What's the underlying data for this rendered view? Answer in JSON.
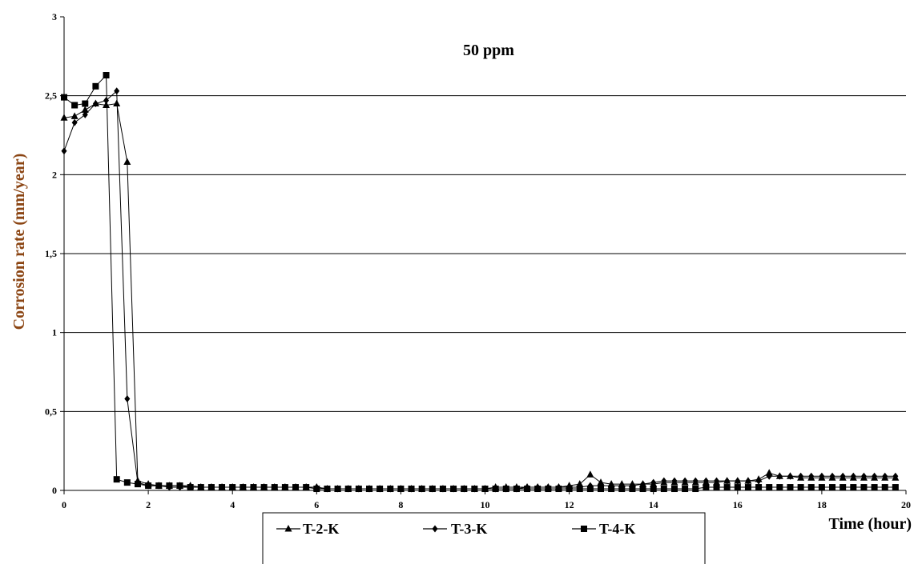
{
  "chart_data": {
    "type": "line",
    "title": "50 ppm",
    "xlabel": "Time (hour)",
    "ylabel": "Corrosion rate (mm/year)",
    "xlim": [
      0,
      20
    ],
    "ylim": [
      0,
      3
    ],
    "x_ticks": [
      0,
      2,
      4,
      6,
      8,
      10,
      12,
      14,
      16,
      18,
      20
    ],
    "x_tick_labels": [
      "0",
      "2",
      "4",
      "6",
      "8",
      "10",
      "12",
      "14",
      "16",
      "18",
      "20"
    ],
    "y_ticks": [
      0,
      0.5,
      1,
      1.5,
      2,
      2.5,
      3
    ],
    "y_tick_labels": [
      "0",
      "0,5",
      "1",
      "1,5",
      "2",
      "2,5",
      "3"
    ],
    "grid": "horizontal",
    "legend_position": "bottom",
    "series": [
      {
        "name": "T-2-K",
        "marker": "triangle",
        "x": [
          0,
          0.25,
          0.5,
          0.75,
          1.0,
          1.25,
          1.5,
          1.75,
          2.0,
          2.25,
          2.5,
          2.75,
          3.0,
          3.25,
          3.5,
          3.75,
          4.0,
          4.25,
          4.5,
          4.75,
          5.0,
          5.25,
          5.5,
          5.75,
          6.0,
          6.25,
          6.5,
          6.75,
          7.0,
          7.25,
          7.5,
          7.75,
          8.0,
          8.25,
          8.5,
          8.75,
          9.0,
          9.25,
          9.5,
          9.75,
          10.0,
          10.25,
          10.5,
          10.75,
          11.0,
          11.25,
          11.5,
          11.75,
          12.0,
          12.25,
          12.5,
          12.75,
          13.0,
          13.25,
          13.5,
          13.75,
          14.0,
          14.25,
          14.5,
          14.75,
          15.0,
          15.25,
          15.5,
          15.75,
          16.0,
          16.25,
          16.5,
          16.75,
          17.0,
          17.25,
          17.5,
          17.75,
          18.0,
          18.25,
          18.5,
          18.75,
          19.0,
          19.25,
          19.5,
          19.75
        ],
        "y": [
          2.36,
          2.37,
          2.41,
          2.45,
          2.44,
          2.45,
          2.08,
          0.06,
          0.04,
          0.03,
          0.03,
          0.03,
          0.03,
          0.02,
          0.02,
          0.02,
          0.02,
          0.02,
          0.02,
          0.02,
          0.02,
          0.02,
          0.02,
          0.02,
          0.02,
          0.01,
          0.01,
          0.01,
          0.01,
          0.01,
          0.01,
          0.01,
          0.01,
          0.01,
          0.01,
          0.01,
          0.01,
          0.01,
          0.01,
          0.01,
          0.01,
          0.02,
          0.02,
          0.02,
          0.02,
          0.02,
          0.02,
          0.02,
          0.03,
          0.04,
          0.1,
          0.05,
          0.04,
          0.04,
          0.04,
          0.04,
          0.04,
          0.05,
          0.05,
          0.05,
          0.05,
          0.05,
          0.05,
          0.06,
          0.06,
          0.06,
          0.07,
          0.11,
          0.09,
          0.09,
          0.08,
          0.08,
          0.08,
          0.08,
          0.08,
          0.08,
          0.08,
          0.08,
          0.08,
          0.08
        ]
      },
      {
        "name": "T-3-K",
        "marker": "diamond",
        "x": [
          0,
          0.25,
          0.5,
          0.75,
          1.0,
          1.25,
          1.5,
          1.75,
          2.0,
          2.25,
          2.5,
          2.75,
          3.0,
          3.25,
          3.5,
          3.75,
          4.0,
          4.25,
          4.5,
          4.75,
          5.0,
          5.25,
          5.5,
          5.75,
          6.0,
          6.25,
          6.5,
          6.75,
          7.0,
          7.25,
          7.5,
          7.75,
          8.0,
          8.25,
          8.5,
          8.75,
          9.0,
          9.25,
          9.5,
          9.75,
          10.0,
          10.25,
          10.5,
          10.75,
          11.0,
          11.25,
          11.5,
          11.75,
          12.0,
          12.25,
          12.5,
          12.75,
          13.0,
          13.25,
          13.5,
          13.75,
          14.0,
          14.25,
          14.5,
          14.75,
          15.0,
          15.25,
          15.5,
          15.75,
          16.0,
          16.25,
          16.5,
          16.75,
          17.0,
          17.25,
          17.5,
          17.75,
          18.0,
          18.25,
          18.5,
          18.75,
          19.0,
          19.25,
          19.5,
          19.75
        ],
        "y": [
          2.15,
          2.33,
          2.38,
          2.45,
          2.47,
          2.53,
          0.58,
          0.05,
          0.03,
          0.03,
          0.02,
          0.02,
          0.02,
          0.02,
          0.02,
          0.02,
          0.02,
          0.02,
          0.02,
          0.02,
          0.02,
          0.02,
          0.02,
          0.02,
          0.02,
          0.01,
          0.01,
          0.01,
          0.01,
          0.01,
          0.01,
          0.01,
          0.01,
          0.01,
          0.01,
          0.01,
          0.01,
          0.01,
          0.01,
          0.01,
          0.01,
          0.01,
          0.01,
          0.01,
          0.02,
          0.02,
          0.02,
          0.02,
          0.02,
          0.02,
          0.03,
          0.03,
          0.03,
          0.03,
          0.03,
          0.04,
          0.05,
          0.06,
          0.06,
          0.06,
          0.06,
          0.06,
          0.06,
          0.06,
          0.06,
          0.06,
          0.06,
          0.09,
          0.09,
          0.09,
          0.09,
          0.09,
          0.09,
          0.09,
          0.09,
          0.09,
          0.09,
          0.09,
          0.09,
          0.09
        ]
      },
      {
        "name": "T-4-K",
        "marker": "square",
        "x": [
          0,
          0.25,
          0.5,
          0.75,
          1.0,
          1.25,
          1.5,
          1.75,
          2.0,
          2.25,
          2.5,
          2.75,
          3.0,
          3.25,
          3.5,
          3.75,
          4.0,
          4.25,
          4.5,
          4.75,
          5.0,
          5.25,
          5.5,
          5.75,
          6.0,
          6.25,
          6.5,
          6.75,
          7.0,
          7.25,
          7.5,
          7.75,
          8.0,
          8.25,
          8.5,
          8.75,
          9.0,
          9.25,
          9.5,
          9.75,
          10.0,
          10.25,
          10.5,
          10.75,
          11.0,
          11.25,
          11.5,
          11.75,
          12.0,
          12.25,
          12.5,
          12.75,
          13.0,
          13.25,
          13.5,
          13.75,
          14.0,
          14.25,
          14.5,
          14.75,
          15.0,
          15.25,
          15.5,
          15.75,
          16.0,
          16.25,
          16.5,
          16.75,
          17.0,
          17.25,
          17.5,
          17.75,
          18.0,
          18.25,
          18.5,
          18.75,
          19.0,
          19.25,
          19.5,
          19.75
        ],
        "y": [
          2.49,
          2.44,
          2.45,
          2.56,
          2.63,
          0.07,
          0.05,
          0.04,
          0.03,
          0.03,
          0.03,
          0.03,
          0.02,
          0.02,
          0.02,
          0.02,
          0.02,
          0.02,
          0.02,
          0.02,
          0.02,
          0.02,
          0.02,
          0.02,
          0.01,
          0.01,
          0.01,
          0.01,
          0.01,
          0.01,
          0.01,
          0.01,
          0.01,
          0.01,
          0.01,
          0.01,
          0.01,
          0.01,
          0.01,
          0.01,
          0.01,
          0.01,
          0.01,
          0.01,
          0.01,
          0.01,
          0.01,
          0.01,
          0.01,
          0.01,
          0.01,
          0.01,
          0.01,
          0.01,
          0.01,
          0.01,
          0.01,
          0.01,
          0.01,
          0.01,
          0.01,
          0.02,
          0.02,
          0.02,
          0.02,
          0.02,
          0.02,
          0.02,
          0.02,
          0.02,
          0.02,
          0.02,
          0.02,
          0.02,
          0.02,
          0.02,
          0.02,
          0.02,
          0.02,
          0.02
        ]
      }
    ]
  }
}
